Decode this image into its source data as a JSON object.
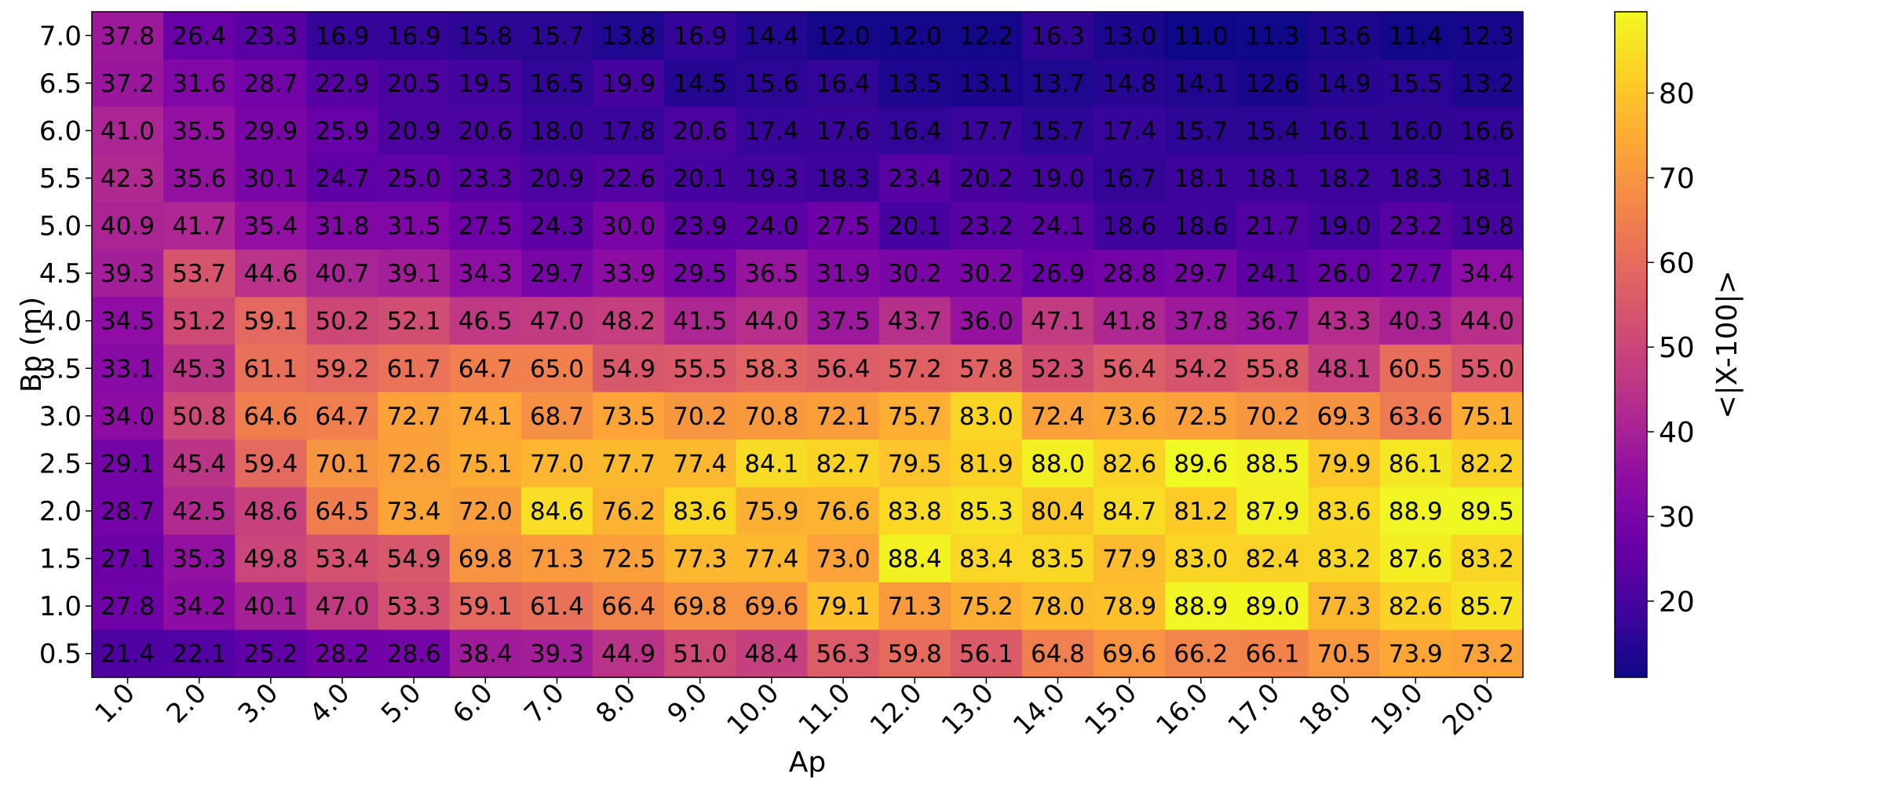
{
  "chart_data": {
    "type": "heatmap",
    "title": "",
    "xlabel": "Ap",
    "ylabel": "Bp (m)",
    "colorbar_label": "<|X-100|>",
    "colormap": "plasma",
    "value_range": [
      11.0,
      89.6
    ],
    "colorbar_ticks": [
      "20",
      "30",
      "40",
      "50",
      "60",
      "70",
      "80"
    ],
    "x": [
      "1.0",
      "2.0",
      "3.0",
      "4.0",
      "5.0",
      "6.0",
      "7.0",
      "8.0",
      "9.0",
      "10.0",
      "11.0",
      "12.0",
      "13.0",
      "14.0",
      "15.0",
      "16.0",
      "17.0",
      "18.0",
      "19.0",
      "20.0"
    ],
    "y": [
      "7.0",
      "6.5",
      "6.0",
      "5.5",
      "5.0",
      "4.5",
      "4.0",
      "3.5",
      "3.0",
      "2.5",
      "2.0",
      "1.5",
      "1.0",
      "0.5"
    ],
    "values": [
      [
        "37.8",
        "26.4",
        "23.3",
        "16.9",
        "16.9",
        "15.8",
        "15.7",
        "13.8",
        "16.9",
        "14.4",
        "12.0",
        "12.0",
        "12.2",
        "16.3",
        "13.0",
        "11.0",
        "11.3",
        "13.6",
        "11.4",
        "12.3"
      ],
      [
        "37.2",
        "31.6",
        "28.7",
        "22.9",
        "20.5",
        "19.5",
        "16.5",
        "19.9",
        "14.5",
        "15.6",
        "16.4",
        "13.5",
        "13.1",
        "13.7",
        "14.8",
        "14.1",
        "12.6",
        "14.9",
        "15.5",
        "13.2"
      ],
      [
        "41.0",
        "35.5",
        "29.9",
        "25.9",
        "20.9",
        "20.6",
        "18.0",
        "17.8",
        "20.6",
        "17.4",
        "17.6",
        "16.4",
        "17.7",
        "15.7",
        "17.4",
        "15.7",
        "15.4",
        "16.1",
        "16.0",
        "16.6"
      ],
      [
        "42.3",
        "35.6",
        "30.1",
        "24.7",
        "25.0",
        "23.3",
        "20.9",
        "22.6",
        "20.1",
        "19.3",
        "18.3",
        "23.4",
        "20.2",
        "19.0",
        "16.7",
        "18.1",
        "18.1",
        "18.2",
        "18.3",
        "18.1"
      ],
      [
        "40.9",
        "41.7",
        "35.4",
        "31.8",
        "31.5",
        "27.5",
        "24.3",
        "30.0",
        "23.9",
        "24.0",
        "27.5",
        "20.1",
        "23.2",
        "24.1",
        "18.6",
        "18.6",
        "21.7",
        "19.0",
        "23.2",
        "19.8"
      ],
      [
        "39.3",
        "53.7",
        "44.6",
        "40.7",
        "39.1",
        "34.3",
        "29.7",
        "33.9",
        "29.5",
        "36.5",
        "31.9",
        "30.2",
        "30.2",
        "26.9",
        "28.8",
        "29.7",
        "24.1",
        "26.0",
        "27.7",
        "34.4"
      ],
      [
        "34.5",
        "51.2",
        "59.1",
        "50.2",
        "52.1",
        "46.5",
        "47.0",
        "48.2",
        "41.5",
        "44.0",
        "37.5",
        "43.7",
        "36.0",
        "47.1",
        "41.8",
        "37.8",
        "36.7",
        "43.3",
        "40.3",
        "44.0"
      ],
      [
        "33.1",
        "45.3",
        "61.1",
        "59.2",
        "61.7",
        "64.7",
        "65.0",
        "54.9",
        "55.5",
        "58.3",
        "56.4",
        "57.2",
        "57.8",
        "52.3",
        "56.4",
        "54.2",
        "55.8",
        "48.1",
        "60.5",
        "55.0"
      ],
      [
        "34.0",
        "50.8",
        "64.6",
        "64.7",
        "72.7",
        "74.1",
        "68.7",
        "73.5",
        "70.2",
        "70.8",
        "72.1",
        "75.7",
        "83.0",
        "72.4",
        "73.6",
        "72.5",
        "70.2",
        "69.3",
        "63.6",
        "75.1"
      ],
      [
        "29.1",
        "45.4",
        "59.4",
        "70.1",
        "72.6",
        "75.1",
        "77.0",
        "77.7",
        "77.4",
        "84.1",
        "82.7",
        "79.5",
        "81.9",
        "88.0",
        "82.6",
        "89.6",
        "88.5",
        "79.9",
        "86.1",
        "82.2"
      ],
      [
        "28.7",
        "42.5",
        "48.6",
        "64.5",
        "73.4",
        "72.0",
        "84.6",
        "76.2",
        "83.6",
        "75.9",
        "76.6",
        "83.8",
        "85.3",
        "80.4",
        "84.7",
        "81.2",
        "87.9",
        "83.6",
        "88.9",
        "89.5"
      ],
      [
        "27.1",
        "35.3",
        "49.8",
        "53.4",
        "54.9",
        "69.8",
        "71.3",
        "72.5",
        "77.3",
        "77.4",
        "73.0",
        "88.4",
        "83.4",
        "83.5",
        "77.9",
        "83.0",
        "82.4",
        "83.2",
        "87.6",
        "83.2"
      ],
      [
        "27.8",
        "34.2",
        "40.1",
        "47.0",
        "53.3",
        "59.1",
        "61.4",
        "66.4",
        "69.8",
        "69.6",
        "79.1",
        "71.3",
        "75.2",
        "78.0",
        "78.9",
        "88.9",
        "89.0",
        "77.3",
        "82.6",
        "85.7"
      ],
      [
        "21.4",
        "22.1",
        "25.2",
        "28.2",
        "28.6",
        "38.4",
        "39.3",
        "44.9",
        "51.0",
        "48.4",
        "56.3",
        "59.8",
        "56.1",
        "64.8",
        "69.6",
        "66.2",
        "66.1",
        "70.5",
        "73.9",
        "73.2"
      ]
    ]
  }
}
